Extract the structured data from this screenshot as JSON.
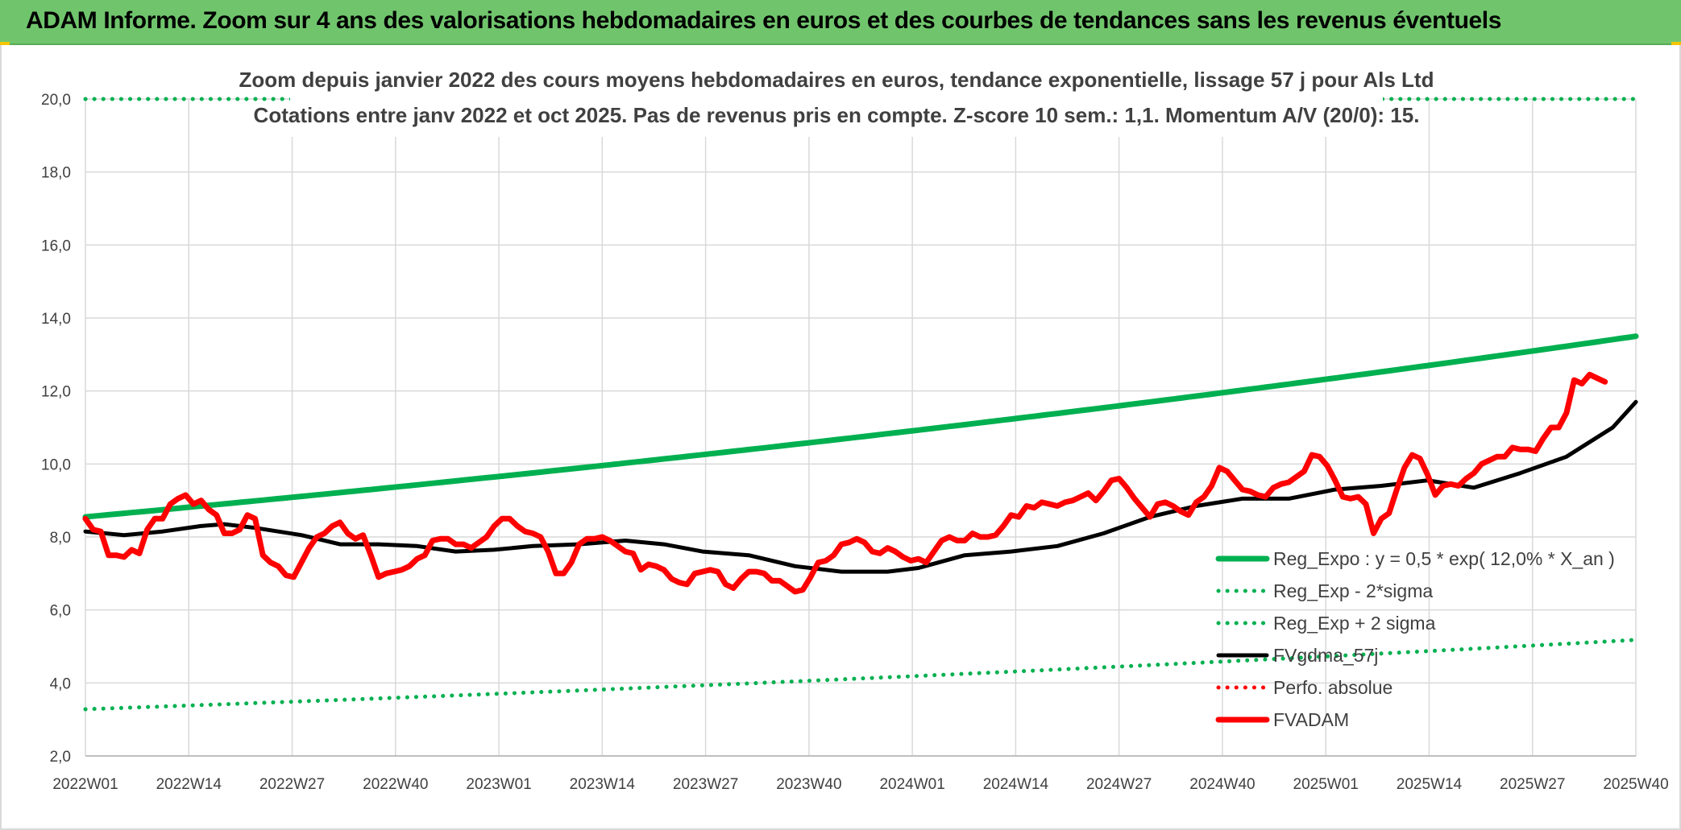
{
  "header": {
    "title": "ADAM Informe. Zoom sur 4 ans des valorisations hebdomadaires en euros et des courbes de tendances sans les revenus éventuels"
  },
  "chart_data": {
    "type": "line",
    "title": "",
    "subtitle_lines": [
      "Zoom depuis janvier 2022 des cours moyens hebdomadaires en euros, tendance exponentielle, lissage 57 j pour Als Ltd",
      "Cotations entre janv 2022 et oct 2025. Pas de revenus pris en compte. Z-score 10 sem.: 1,1. Momentum A/V (20/0): 15."
    ],
    "xlabel": "",
    "ylabel": "",
    "ylim": [
      2,
      20
    ],
    "yticks": [
      "2,0",
      "4,0",
      "6,0",
      "8,0",
      "10,0",
      "12,0",
      "14,0",
      "16,0",
      "18,0",
      "20,0"
    ],
    "xticks": [
      "2022W01",
      "2022W14",
      "2022W27",
      "2022W40",
      "2023W01",
      "2023W14",
      "2023W27",
      "2023W40",
      "2024W01",
      "2024W14",
      "2024W27",
      "2024W40",
      "2025W01",
      "2025W14",
      "2025W27",
      "2025W40"
    ],
    "grid": true,
    "legend_position": "bottom-right",
    "x_weeks": {
      "start": 0,
      "end": 201
    },
    "series": [
      {
        "name": "Reg_Expo : y = 0,5 * exp( 12,0% *  X_an )",
        "color": "#00b050",
        "style": "solid-thick",
        "points": [
          [
            0,
            8.55
          ],
          [
            201,
            13.5
          ]
        ]
      },
      {
        "name": "Reg_Exp - 2*sigma",
        "color": "#00b050",
        "style": "dotted",
        "points": [
          [
            0,
            3.28
          ],
          [
            201,
            5.18
          ]
        ]
      },
      {
        "name": "Reg_Exp + 2 sigma",
        "color": "#00b050",
        "style": "dotted",
        "points": [
          [
            0,
            20.0
          ],
          [
            201,
            20.0
          ]
        ]
      },
      {
        "name": "FVgdma_57j",
        "color": "#000000",
        "style": "solid",
        "points": [
          [
            0,
            8.15
          ],
          [
            5,
            8.05
          ],
          [
            10,
            8.15
          ],
          [
            15,
            8.3
          ],
          [
            18,
            8.35
          ],
          [
            22,
            8.25
          ],
          [
            28,
            8.05
          ],
          [
            33,
            7.8
          ],
          [
            38,
            7.8
          ],
          [
            43,
            7.75
          ],
          [
            48,
            7.6
          ],
          [
            53,
            7.65
          ],
          [
            58,
            7.75
          ],
          [
            64,
            7.8
          ],
          [
            70,
            7.9
          ],
          [
            75,
            7.8
          ],
          [
            80,
            7.6
          ],
          [
            86,
            7.5
          ],
          [
            92,
            7.2
          ],
          [
            98,
            7.05
          ],
          [
            104,
            7.05
          ],
          [
            108,
            7.15
          ],
          [
            114,
            7.5
          ],
          [
            120,
            7.6
          ],
          [
            126,
            7.75
          ],
          [
            132,
            8.1
          ],
          [
            138,
            8.55
          ],
          [
            144,
            8.85
          ],
          [
            150,
            9.05
          ],
          [
            156,
            9.05
          ],
          [
            162,
            9.3
          ],
          [
            168,
            9.4
          ],
          [
            174,
            9.55
          ],
          [
            180,
            9.35
          ],
          [
            186,
            9.75
          ],
          [
            192,
            10.2
          ],
          [
            198,
            11.0
          ],
          [
            201,
            11.7
          ]
        ]
      },
      {
        "name": "Perfo. absolue",
        "color": "#ff0000",
        "style": "dotted",
        "points": []
      },
      {
        "name": "FVADAM",
        "color": "#ff0000",
        "style": "solid-thick",
        "points": [
          [
            0,
            8.5
          ],
          [
            1,
            8.2
          ],
          [
            2,
            8.15
          ],
          [
            3,
            7.5
          ],
          [
            4,
            7.5
          ],
          [
            5,
            7.45
          ],
          [
            6,
            7.65
          ],
          [
            7,
            7.55
          ],
          [
            8,
            8.2
          ],
          [
            9,
            8.5
          ],
          [
            10,
            8.5
          ],
          [
            11,
            8.9
          ],
          [
            12,
            9.05
          ],
          [
            13,
            9.15
          ],
          [
            14,
            8.9
          ],
          [
            15,
            9.0
          ],
          [
            16,
            8.75
          ],
          [
            17,
            8.6
          ],
          [
            18,
            8.1
          ],
          [
            19,
            8.1
          ],
          [
            20,
            8.2
          ],
          [
            21,
            8.6
          ],
          [
            22,
            8.5
          ],
          [
            23,
            7.5
          ],
          [
            24,
            7.3
          ],
          [
            25,
            7.2
          ],
          [
            26,
            6.95
          ],
          [
            27,
            6.9
          ],
          [
            28,
            7.3
          ],
          [
            29,
            7.7
          ],
          [
            30,
            8.0
          ],
          [
            31,
            8.1
          ],
          [
            32,
            8.3
          ],
          [
            33,
            8.4
          ],
          [
            34,
            8.1
          ],
          [
            35,
            7.95
          ],
          [
            36,
            8.05
          ],
          [
            37,
            7.5
          ],
          [
            38,
            6.9
          ],
          [
            39,
            7.0
          ],
          [
            40,
            7.05
          ],
          [
            41,
            7.1
          ],
          [
            42,
            7.2
          ],
          [
            43,
            7.4
          ],
          [
            44,
            7.5
          ],
          [
            45,
            7.9
          ],
          [
            46,
            7.95
          ],
          [
            47,
            7.95
          ],
          [
            48,
            7.8
          ],
          [
            49,
            7.8
          ],
          [
            50,
            7.7
          ],
          [
            51,
            7.85
          ],
          [
            52,
            8.0
          ],
          [
            53,
            8.3
          ],
          [
            54,
            8.5
          ],
          [
            55,
            8.5
          ],
          [
            56,
            8.3
          ],
          [
            57,
            8.15
          ],
          [
            58,
            8.1
          ],
          [
            59,
            8.0
          ],
          [
            60,
            7.6
          ],
          [
            61,
            7.0
          ],
          [
            62,
            7.0
          ],
          [
            63,
            7.3
          ],
          [
            64,
            7.8
          ],
          [
            65,
            7.95
          ],
          [
            66,
            7.95
          ],
          [
            67,
            8.0
          ],
          [
            68,
            7.9
          ],
          [
            69,
            7.75
          ],
          [
            70,
            7.6
          ],
          [
            71,
            7.55
          ],
          [
            72,
            7.1
          ],
          [
            73,
            7.25
          ],
          [
            74,
            7.2
          ],
          [
            75,
            7.1
          ],
          [
            76,
            6.85
          ],
          [
            77,
            6.75
          ],
          [
            78,
            6.7
          ],
          [
            79,
            7.0
          ],
          [
            80,
            7.05
          ],
          [
            81,
            7.1
          ],
          [
            82,
            7.05
          ],
          [
            83,
            6.7
          ],
          [
            84,
            6.6
          ],
          [
            85,
            6.85
          ],
          [
            86,
            7.05
          ],
          [
            87,
            7.05
          ],
          [
            88,
            7.0
          ],
          [
            89,
            6.8
          ],
          [
            90,
            6.8
          ],
          [
            91,
            6.65
          ],
          [
            92,
            6.5
          ],
          [
            93,
            6.55
          ],
          [
            94,
            6.9
          ],
          [
            95,
            7.3
          ],
          [
            96,
            7.35
          ],
          [
            97,
            7.5
          ],
          [
            98,
            7.8
          ],
          [
            99,
            7.85
          ],
          [
            100,
            7.95
          ],
          [
            101,
            7.85
          ],
          [
            102,
            7.6
          ],
          [
            103,
            7.55
          ],
          [
            104,
            7.7
          ],
          [
            105,
            7.6
          ],
          [
            106,
            7.45
          ],
          [
            107,
            7.35
          ],
          [
            108,
            7.4
          ],
          [
            109,
            7.3
          ],
          [
            110,
            7.6
          ],
          [
            111,
            7.9
          ],
          [
            112,
            8.0
          ],
          [
            113,
            7.9
          ],
          [
            114,
            7.9
          ],
          [
            115,
            8.1
          ],
          [
            116,
            8.0
          ],
          [
            117,
            8.0
          ],
          [
            118,
            8.05
          ],
          [
            119,
            8.3
          ],
          [
            120,
            8.6
          ],
          [
            121,
            8.55
          ],
          [
            122,
            8.85
          ],
          [
            123,
            8.8
          ],
          [
            124,
            8.95
          ],
          [
            125,
            8.9
          ],
          [
            126,
            8.85
          ],
          [
            127,
            8.95
          ],
          [
            128,
            9.0
          ],
          [
            129,
            9.1
          ],
          [
            130,
            9.2
          ],
          [
            131,
            9.0
          ],
          [
            132,
            9.25
          ],
          [
            133,
            9.55
          ],
          [
            134,
            9.6
          ],
          [
            135,
            9.35
          ],
          [
            136,
            9.05
          ],
          [
            137,
            8.8
          ],
          [
            138,
            8.55
          ],
          [
            139,
            8.9
          ],
          [
            140,
            8.95
          ],
          [
            141,
            8.85
          ],
          [
            142,
            8.7
          ],
          [
            143,
            8.6
          ],
          [
            144,
            8.95
          ],
          [
            145,
            9.1
          ],
          [
            146,
            9.4
          ],
          [
            147,
            9.9
          ],
          [
            148,
            9.8
          ],
          [
            149,
            9.55
          ],
          [
            150,
            9.3
          ],
          [
            151,
            9.25
          ],
          [
            152,
            9.15
          ],
          [
            153,
            9.1
          ],
          [
            154,
            9.35
          ],
          [
            155,
            9.45
          ],
          [
            156,
            9.5
          ],
          [
            157,
            9.65
          ],
          [
            158,
            9.8
          ],
          [
            159,
            10.25
          ],
          [
            160,
            10.2
          ],
          [
            161,
            9.95
          ],
          [
            162,
            9.55
          ],
          [
            163,
            9.1
          ],
          [
            164,
            9.05
          ],
          [
            165,
            9.1
          ],
          [
            166,
            8.9
          ],
          [
            167,
            8.1
          ],
          [
            168,
            8.5
          ],
          [
            169,
            8.65
          ],
          [
            170,
            9.3
          ],
          [
            171,
            9.9
          ],
          [
            172,
            10.25
          ],
          [
            173,
            10.15
          ],
          [
            174,
            9.7
          ],
          [
            175,
            9.15
          ],
          [
            176,
            9.4
          ],
          [
            177,
            9.45
          ],
          [
            178,
            9.4
          ],
          [
            179,
            9.6
          ],
          [
            180,
            9.75
          ],
          [
            181,
            10.0
          ],
          [
            182,
            10.1
          ],
          [
            183,
            10.2
          ],
          [
            184,
            10.2
          ],
          [
            185,
            10.45
          ],
          [
            186,
            10.4
          ],
          [
            187,
            10.4
          ],
          [
            188,
            10.35
          ],
          [
            189,
            10.7
          ],
          [
            190,
            11.0
          ],
          [
            191,
            11.0
          ],
          [
            192,
            11.4
          ],
          [
            193,
            12.3
          ],
          [
            194,
            12.2
          ],
          [
            195,
            12.45
          ],
          [
            196,
            12.35
          ],
          [
            197,
            12.25
          ]
        ]
      }
    ]
  }
}
